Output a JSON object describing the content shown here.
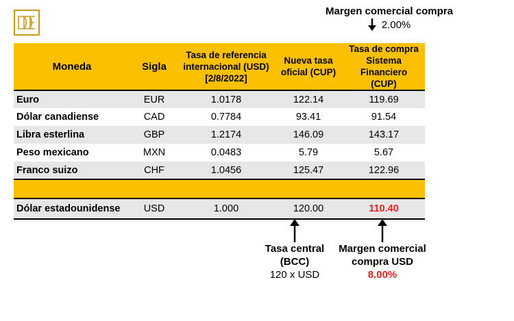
{
  "logo": {
    "icon": "bank-monogram-icon",
    "color": "#c79a1e"
  },
  "top_note": {
    "title": "Margen comercial compra",
    "value": "2.00%"
  },
  "table": {
    "headers": {
      "moneda": "Moneda",
      "sigla": "Sigla",
      "ref_line1": "Tasa de referencia",
      "ref_line2": "internacional (USD)",
      "ref_line3": "[2/8/2022]",
      "nueva_line1": "Nueva tasa",
      "nueva_line2": "oficial (CUP)",
      "compra_line1": "Tasa de compra",
      "compra_line2": "Sistema Financiero",
      "compra_line3": "(CUP)"
    },
    "rows": [
      {
        "moneda": "Euro",
        "sigla": "EUR",
        "ref": "1.0178",
        "nueva": "122.14",
        "compra": "119.69"
      },
      {
        "moneda": "Dólar canadiense",
        "sigla": "CAD",
        "ref": "0.7784",
        "nueva": "93.41",
        "compra": "91.54"
      },
      {
        "moneda": "Libra esterlina",
        "sigla": "GBP",
        "ref": "1.2174",
        "nueva": "146.09",
        "compra": "143.17"
      },
      {
        "moneda": "Peso mexicano",
        "sigla": "MXN",
        "ref": "0.0483",
        "nueva": "5.79",
        "compra": "5.67"
      },
      {
        "moneda": "Franco suizo",
        "sigla": "CHF",
        "ref": "1.0456",
        "nueva": "125.47",
        "compra": "122.96"
      }
    ],
    "usd_row": {
      "moneda": "Dólar estadounidense",
      "sigla": "USD",
      "ref": "1.000",
      "nueva": "120.00",
      "compra": "110.40"
    }
  },
  "note_central": {
    "line1": "Tasa central",
    "line2": "(BCC)",
    "line3": "120 x USD"
  },
  "note_margin": {
    "line1": "Margen comercial",
    "line2": "compra USD",
    "line3": "8.00%"
  },
  "colors": {
    "header_bg": "#fbc000",
    "row_shade": "#e6e6e6",
    "highlight": "#e8211c"
  }
}
